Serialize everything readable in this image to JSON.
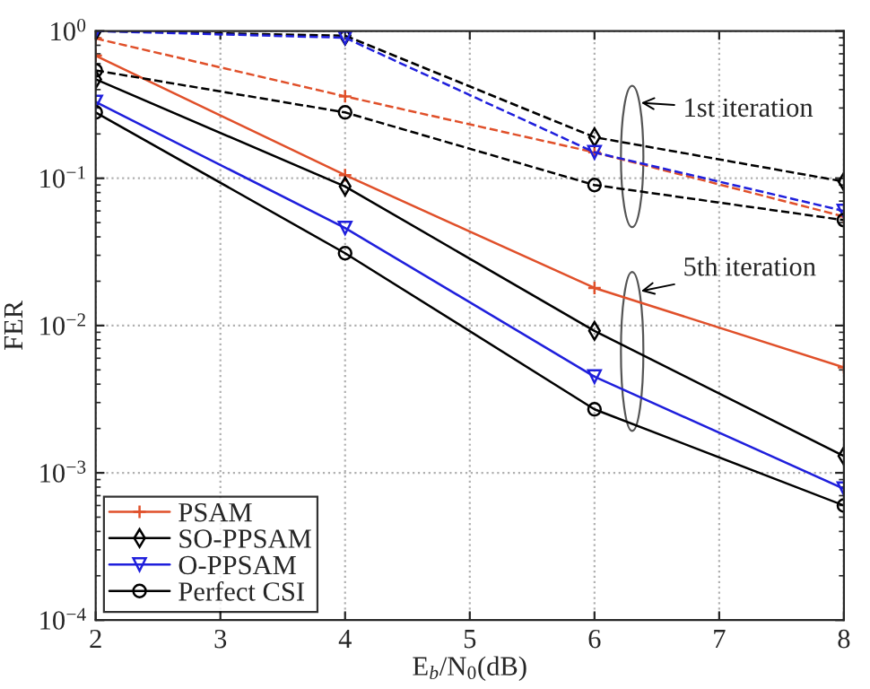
{
  "chart_data": {
    "type": "line",
    "xlabel": "E$_{b}$/N$_{0}$(dB)",
    "ylabel": "FER",
    "x": [
      2,
      4,
      6,
      8
    ],
    "series": [
      {
        "name": "PSAM",
        "color": "#e0502a",
        "marker": "cross",
        "line_style": "solid",
        "values": [
          0.68,
          0.105,
          0.018,
          0.0052
        ]
      },
      {
        "name": "SO-PPSAM",
        "color": "#000000",
        "marker": "diamond",
        "line_style": "solid",
        "values": [
          0.47,
          0.088,
          0.0092,
          0.0013
        ]
      },
      {
        "name": "O-PPSAM",
        "color": "#1f1fdc",
        "marker": "triangle",
        "line_style": "solid",
        "values": [
          0.33,
          0.046,
          0.0045,
          0.00078
        ]
      },
      {
        "name": "Perfect CSI",
        "color": "#000000",
        "marker": "circle",
        "line_style": "solid",
        "values": [
          0.28,
          0.031,
          0.0027,
          0.0006
        ]
      },
      {
        "color": "#e0502a",
        "marker": "cross",
        "line_style": "dashed",
        "values": [
          0.89,
          0.36,
          0.15,
          0.055
        ]
      },
      {
        "color": "#000000",
        "marker": "diamond",
        "line_style": "dashed",
        "values": [
          1.0,
          0.93,
          0.19,
          0.095
        ]
      },
      {
        "color": "#1f1fdc",
        "marker": "triangle",
        "line_style": "dashed",
        "values": [
          1.0,
          0.9,
          0.15,
          0.06
        ]
      },
      {
        "color": "#000000",
        "marker": "circle",
        "line_style": "dashed",
        "values": [
          0.54,
          0.28,
          0.09,
          0.052
        ]
      }
    ],
    "annotations": [
      "1st iteration",
      "5th iteration"
    ],
    "log": "y",
    "xlim": [
      2,
      8
    ],
    "ylim": [
      0.0001,
      1
    ],
    "xticks": [
      2,
      3,
      4,
      5,
      6,
      7,
      8
    ],
    "yticks": [
      {
        "value": 0.0001,
        "label": "10$^{−4}$"
      },
      {
        "value": 0.001,
        "label": "10$^{−3}$"
      },
      {
        "value": 0.01,
        "label": "10$^{−2}$"
      },
      {
        "value": 0.1,
        "label": "10$^{−1}$"
      },
      {
        "value": 1,
        "label": "10$^{0}$"
      }
    ],
    "grid": true,
    "legend": "bottom left"
  }
}
